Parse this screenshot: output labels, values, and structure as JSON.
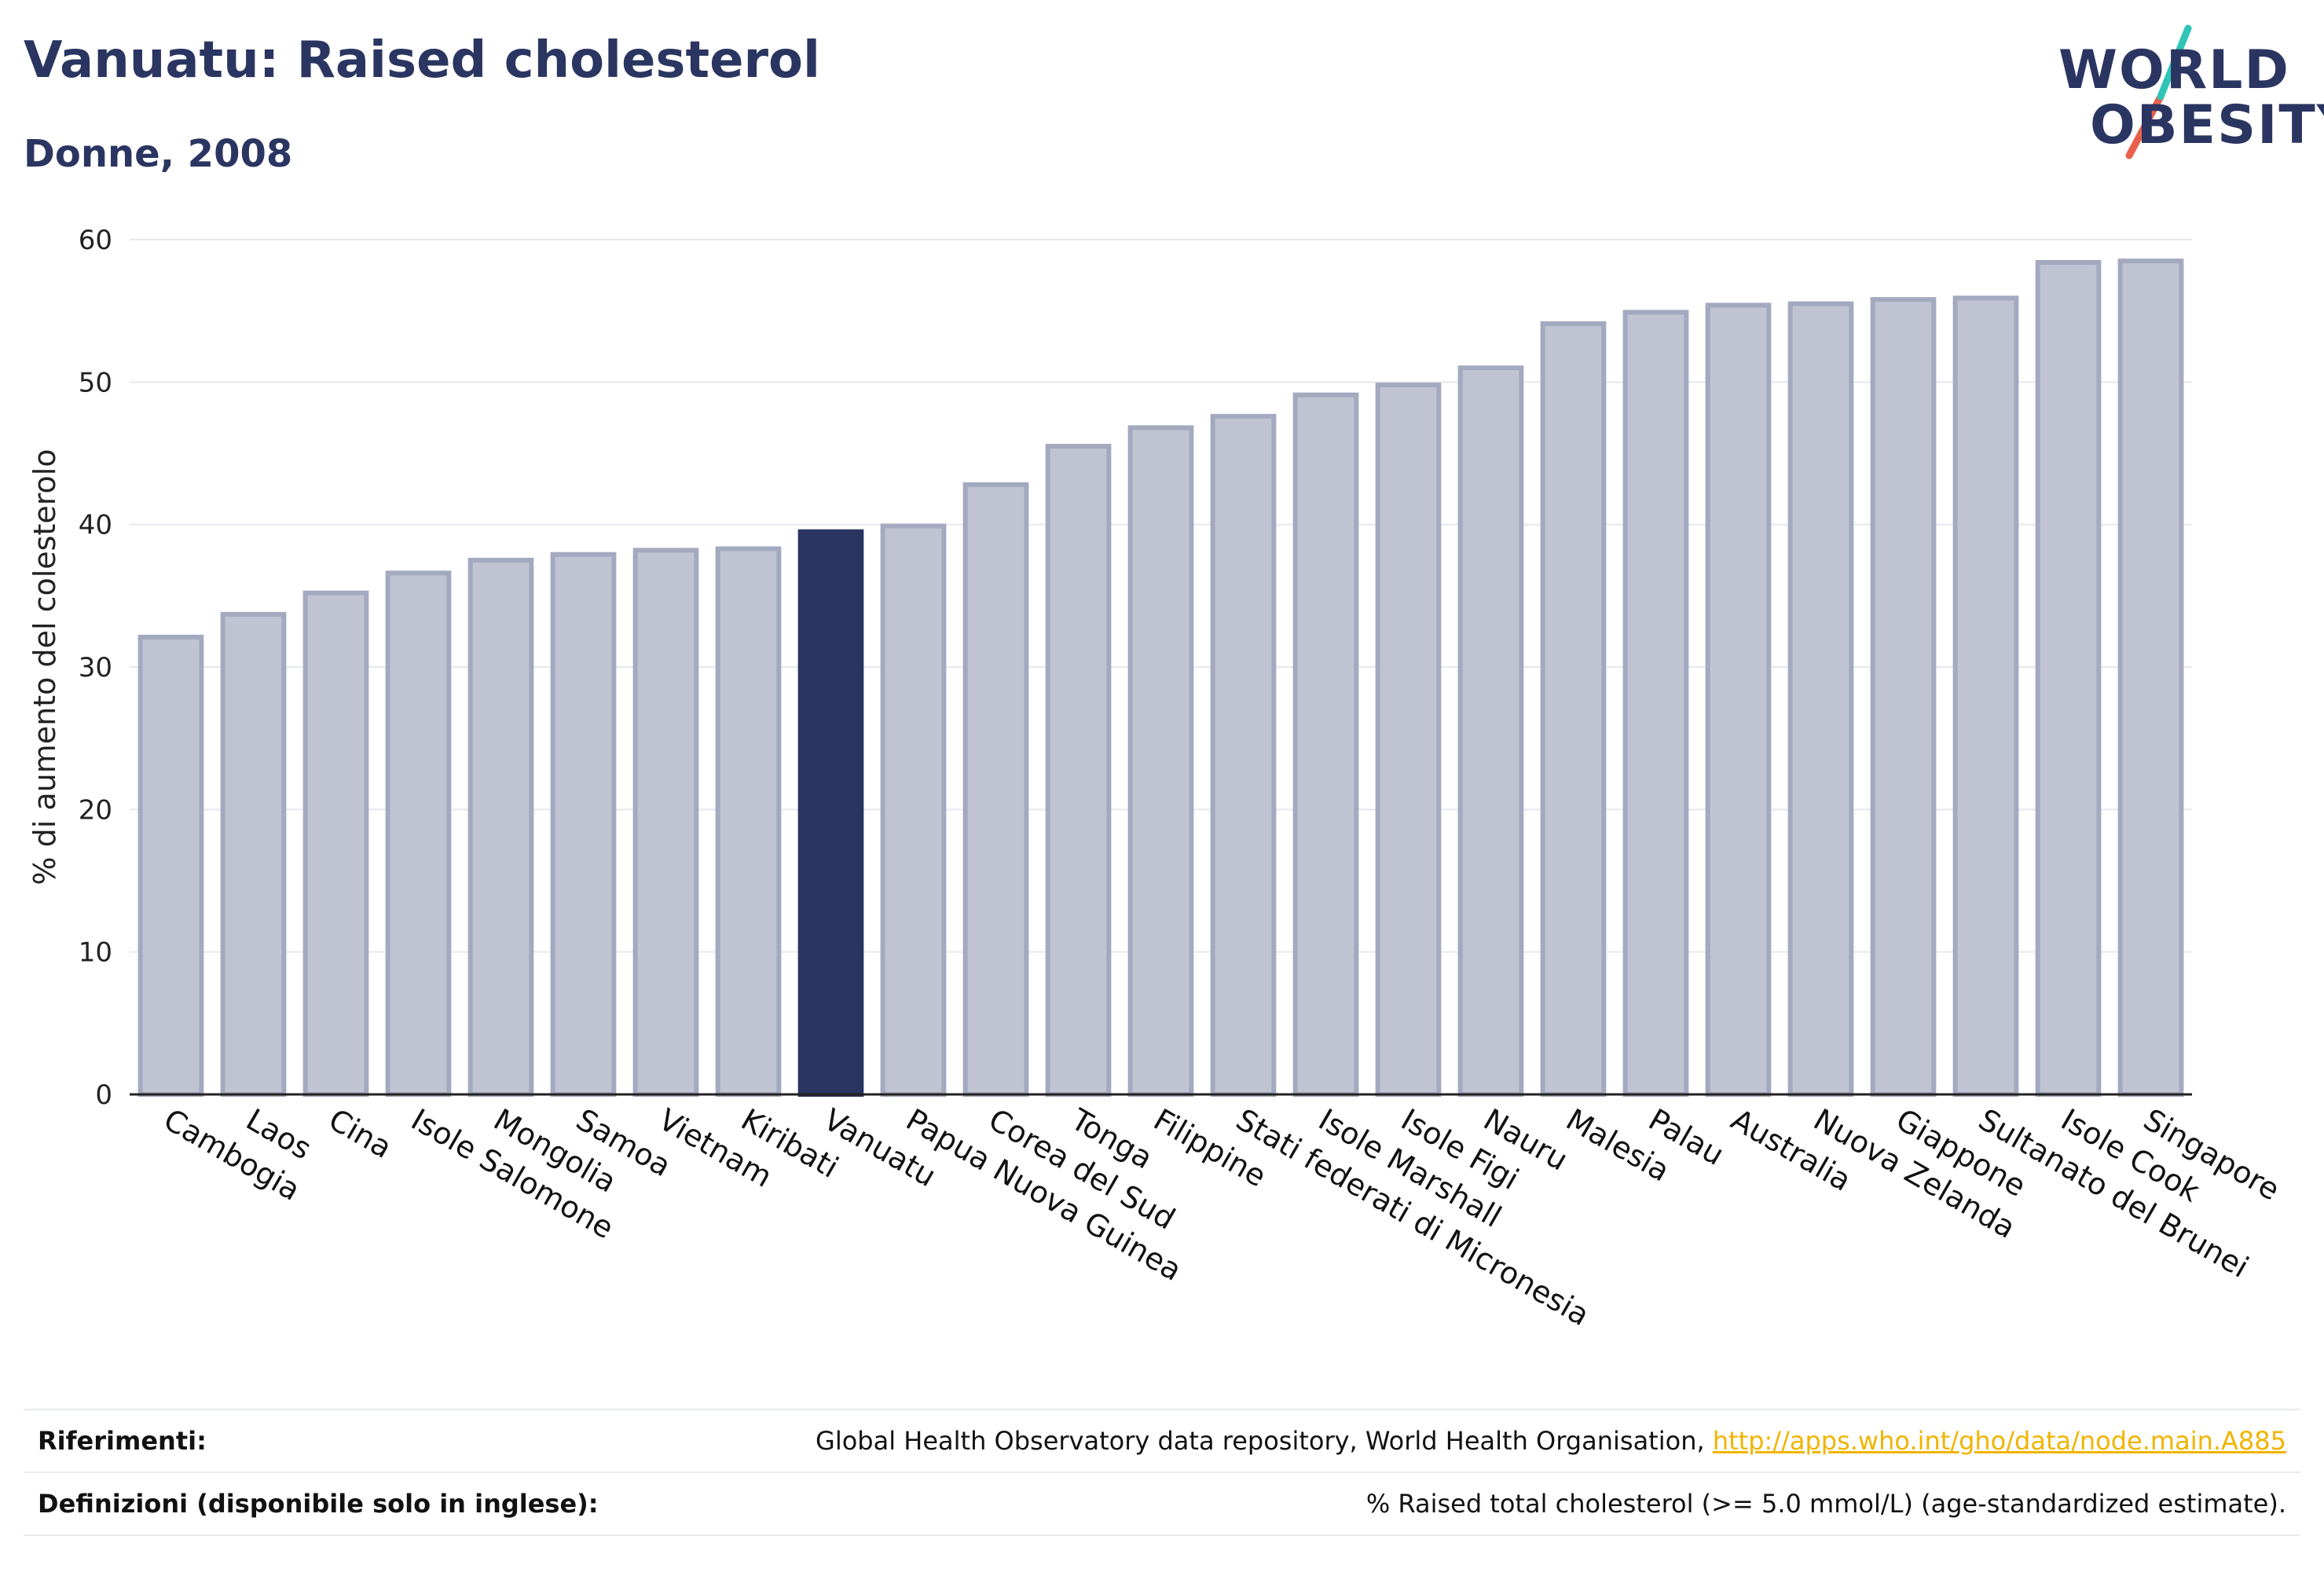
{
  "header": {
    "title": "Vanuatu: Raised cholesterol",
    "subtitle": "Donne, 2008"
  },
  "logo": {
    "line1": "WORLD",
    "line2": "OBESITY",
    "accent_colors": [
      "#2ec4b6",
      "#e8604c"
    ]
  },
  "colors": {
    "bar_default": "#c0c4d2",
    "bar_default_border": "#a3a9bf",
    "bar_highlight": "#2b3561",
    "text_dark": "#2b3561",
    "link": "#f0b400"
  },
  "chart_data": {
    "type": "bar",
    "title": "Vanuatu: Raised cholesterol",
    "subtitle": "Donne, 2008",
    "xlabel": "",
    "ylabel": "% di aumento del colesterolo",
    "ylim": [
      0,
      60
    ],
    "yticks": [
      0,
      10,
      20,
      30,
      40,
      50,
      60
    ],
    "grid": true,
    "highlight": "Vanuatu",
    "categories": [
      "Cambogia",
      "Laos",
      "Cina",
      "Isole Salomone",
      "Mongolia",
      "Samoa",
      "Vietnam",
      "Kiribati",
      "Vanuatu",
      "Papua Nuova Guinea",
      "Corea del Sud",
      "Tonga",
      "Filippine",
      "Stati federati di Micronesia",
      "Isole Marshall",
      "Isole Figi",
      "Nauru",
      "Malesia",
      "Palau",
      "Australia",
      "Nuova Zelanda",
      "Giappone",
      "Sultanato del Brunei",
      "Isole Cook",
      "Singapore"
    ],
    "values": [
      32.1,
      33.7,
      35.2,
      36.6,
      37.5,
      37.9,
      38.2,
      38.3,
      39.5,
      39.9,
      42.8,
      45.5,
      46.8,
      47.6,
      49.1,
      49.8,
      51.0,
      54.1,
      54.9,
      55.4,
      55.5,
      55.8,
      55.9,
      58.4,
      58.5
    ]
  },
  "footer": {
    "references_label": "Riferimenti:",
    "references_text": "Global Health Observatory data repository, World Health Organisation, ",
    "references_link": "http://apps.who.int/gho/data/node.main.A885",
    "definitions_label": "Definizioni (disponibile solo in inglese):",
    "definitions_text": "% Raised total cholesterol (>= 5.0 mmol/L) (age-standardized estimate)."
  }
}
